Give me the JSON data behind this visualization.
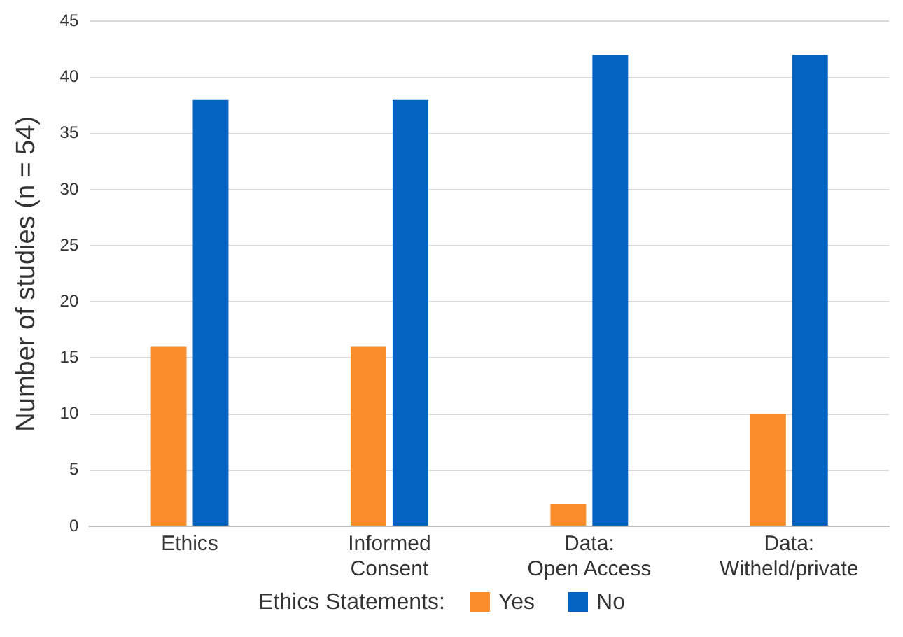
{
  "chart_data": {
    "type": "bar",
    "ylabel": "Number of studies (n = 54)",
    "legend_title": "Ethics Statements:",
    "categories": [
      "Ethics",
      "Informed\nConsent",
      "Data:\nOpen Access",
      "Data:\nWitheld/private"
    ],
    "series": [
      {
        "name": "Yes",
        "color": "#fb8c2c",
        "values": [
          16,
          16,
          2,
          10
        ]
      },
      {
        "name": "No",
        "color": "#0563c1",
        "values": [
          38,
          38,
          42,
          42
        ]
      }
    ],
    "ylim": [
      0,
      45
    ],
    "yticks": [
      0,
      5,
      10,
      15,
      20,
      25,
      30,
      35,
      40,
      45
    ],
    "grid": "y",
    "legend": "bottom"
  }
}
